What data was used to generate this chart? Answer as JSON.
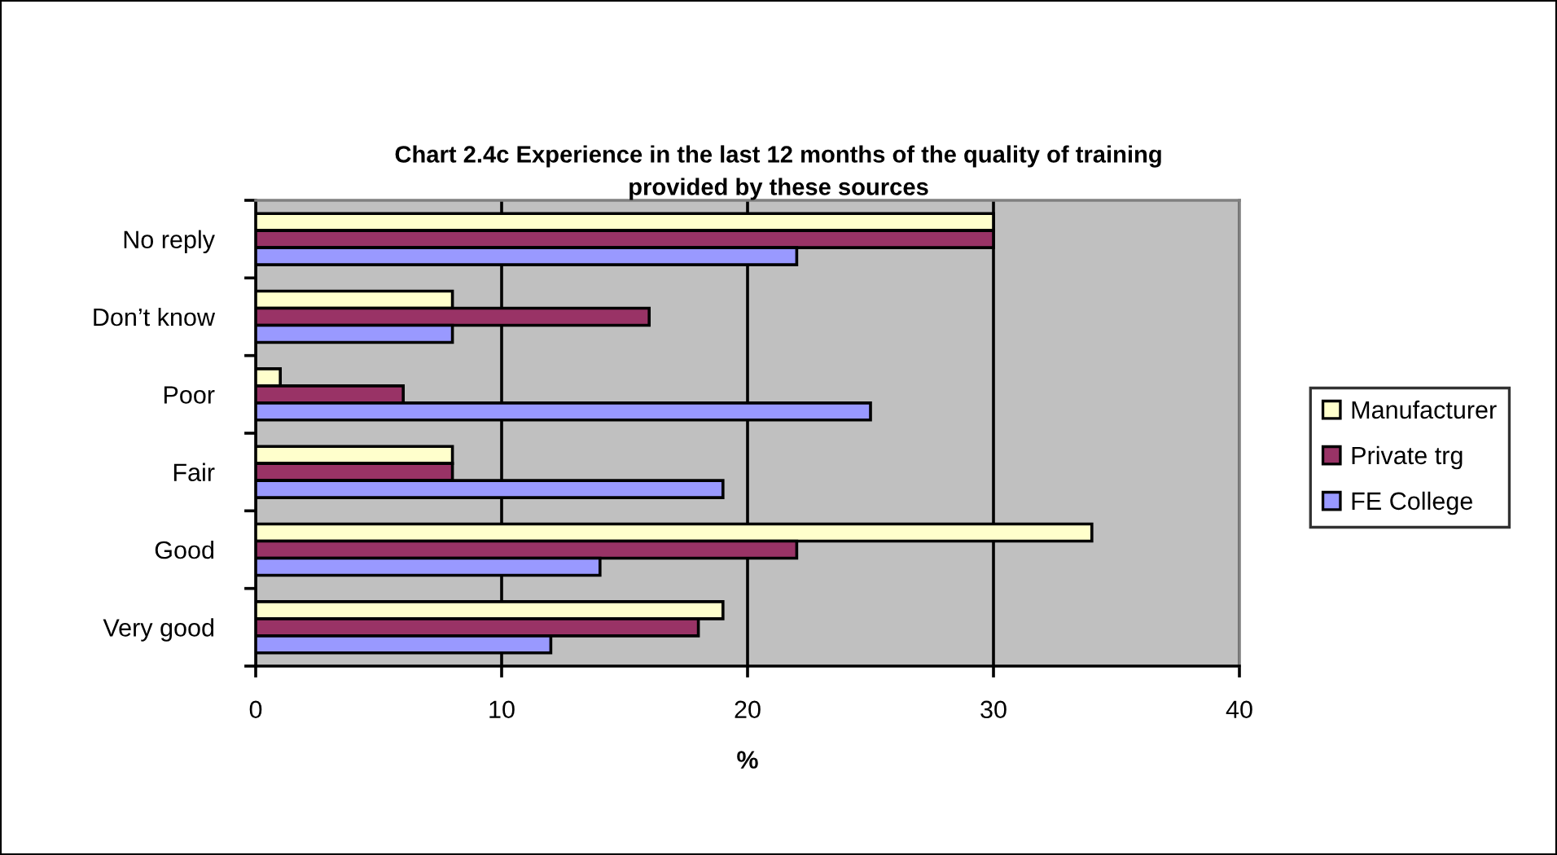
{
  "chart_data": {
    "type": "bar",
    "orientation": "horizontal",
    "title": "Chart 2.4c Experience in the last 12 months of the quality of training provided by these sources",
    "xlabel": "%",
    "categories": [
      "No reply",
      "Don’t know",
      "Poor",
      "Fair",
      "Good",
      "Very good"
    ],
    "series": [
      {
        "name": "Manufacturer",
        "color": "#ffffcc",
        "values": [
          30,
          8,
          1,
          8,
          34,
          19
        ]
      },
      {
        "name": "Private trg",
        "color": "#993366",
        "values": [
          30,
          16,
          6,
          8,
          22,
          18
        ]
      },
      {
        "name": "FE College",
        "color": "#9999ff",
        "values": [
          22,
          8,
          25,
          19,
          14,
          12
        ]
      }
    ],
    "xlim": [
      0,
      40
    ],
    "xticks": [
      0,
      10,
      20,
      30,
      40
    ],
    "grid": "x",
    "legend": "right"
  }
}
